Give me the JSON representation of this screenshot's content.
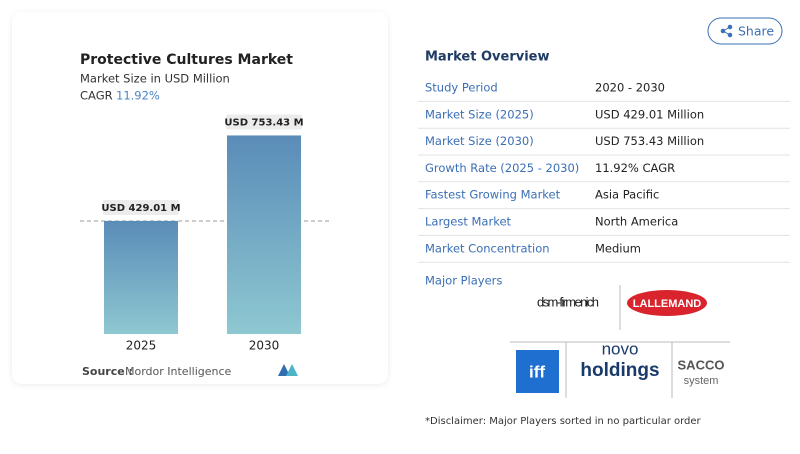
{
  "chart_data": {
    "type": "bar",
    "title": "Protective Cultures Market",
    "subtitle": "Market Size in USD Million",
    "cagr_label": "CAGR",
    "cagr": "11.92%",
    "categories": [
      "2025",
      "2030"
    ],
    "values": [
      429.01,
      753.43
    ],
    "value_labels": [
      "USD 429.01 M",
      "USD 753.43 M"
    ],
    "ylim": [
      0,
      850
    ],
    "color_top": "#5a8cb8",
    "color_bottom": "#8ec8d1",
    "source_label": "Source :",
    "source": "Mordor Intelligence"
  },
  "share": "Share",
  "overview": {
    "title": "Market Overview",
    "rows": [
      [
        "Study Period",
        "2020 - 2030"
      ],
      [
        "Market Size (2025)",
        "USD 429.01 Million"
      ],
      [
        "Market Size (2030)",
        "USD 753.43 Million"
      ],
      [
        "Growth Rate (2025 - 2030)",
        "11.92% CAGR"
      ],
      [
        "Fastest Growing Market",
        "Asia Pacific"
      ],
      [
        "Largest Market",
        "North America"
      ],
      [
        "Market Concentration",
        "Medium"
      ]
    ]
  },
  "players": {
    "title": "Major Players",
    "logos": [
      "dsm-firmenich",
      "LALLEMAND",
      "iff",
      "novo",
      "holdings",
      "SACCO",
      "system"
    ]
  },
  "disclaimer": "*Disclaimer: Major Players sorted in no particular order"
}
